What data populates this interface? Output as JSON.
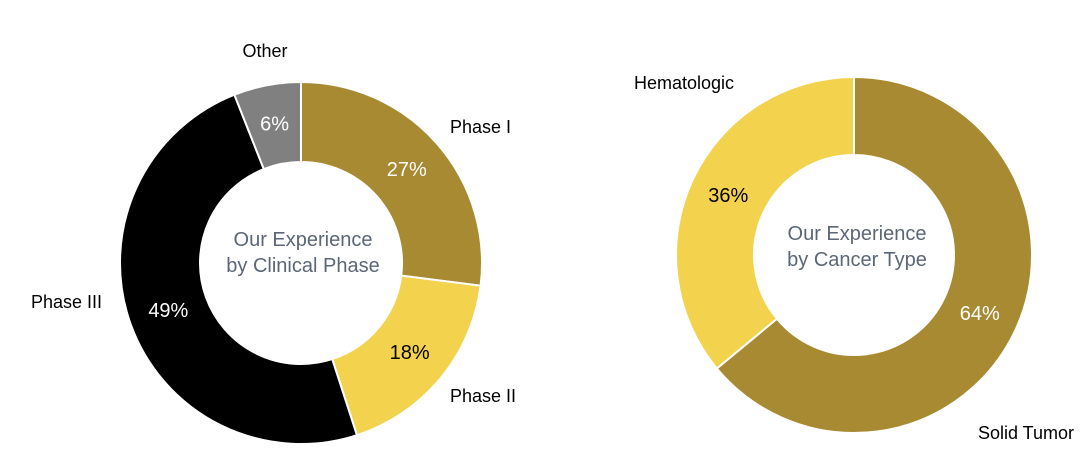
{
  "chart_data": [
    {
      "type": "pie",
      "donut": true,
      "title": "Our Experience\nby Clinical Phase",
      "categories": [
        "Phase I",
        "Phase II",
        "Phase III",
        "Other"
      ],
      "values": [
        27,
        18,
        49,
        6
      ],
      "value_labels": [
        "27%",
        "18%",
        "49%",
        "6%"
      ],
      "colors": [
        "#a88a32",
        "#f3d24e",
        "#000000",
        "#808080"
      ],
      "label_colors": [
        "#ffffff",
        "#000000",
        "#ffffff",
        "#ffffff"
      ]
    },
    {
      "type": "pie",
      "donut": true,
      "title": "Our Experience\nby Cancer Type",
      "categories": [
        "Solid Tumor",
        "Hematologic"
      ],
      "values": [
        64,
        36
      ],
      "value_labels": [
        "64%",
        "36%"
      ],
      "colors": [
        "#a88a32",
        "#f3d24e"
      ],
      "label_colors": [
        "#ffffff",
        "#000000"
      ]
    }
  ]
}
